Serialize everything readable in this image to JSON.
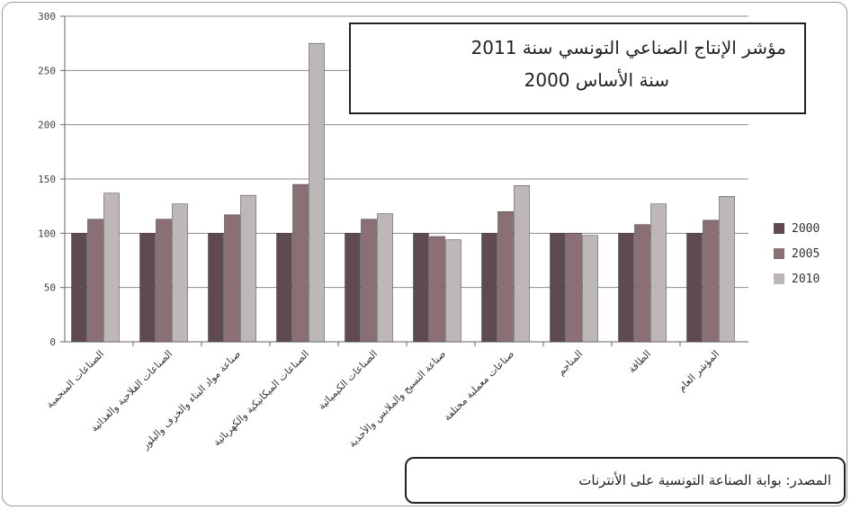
{
  "chart_data": {
    "type": "bar",
    "title": "مؤشر الإنتاج الصناعي التونسي سنة 2011",
    "subtitle": "سنة الأساس 2000",
    "source_note": "المصدر: بوابة الصناعة التونسية على الأنترنات",
    "ylim": [
      0,
      300
    ],
    "yticks": [
      0,
      50,
      100,
      150,
      200,
      250,
      300
    ],
    "grid": true,
    "legend_position": "right",
    "categories": [
      "الصناعات المنجمية",
      "الصناعات الفلاحية والغذائية",
      "صناعة مواد البناء والخزف والبلور",
      "الصناعات الميكانيكية والكهربائية",
      "الصناعات الكيميائية",
      "صناعة النسيج والملابس والأحذية",
      "صناعات معملية مختلفة",
      "المناجم",
      "الطاقة",
      "المؤشر العام"
    ],
    "series": [
      {
        "name": "2000",
        "color": "#5e4a50",
        "values": [
          100,
          100,
          100,
          100,
          100,
          100,
          100,
          100,
          100,
          100
        ]
      },
      {
        "name": "2005",
        "color": "#8a7075",
        "values": [
          113,
          113,
          117,
          145,
          113,
          97,
          120,
          100,
          108,
          112
        ]
      },
      {
        "name": "2010",
        "color": "#bdb7b8",
        "values": [
          137,
          127,
          135,
          275,
          118,
          94,
          144,
          98,
          127,
          134
        ]
      }
    ]
  }
}
